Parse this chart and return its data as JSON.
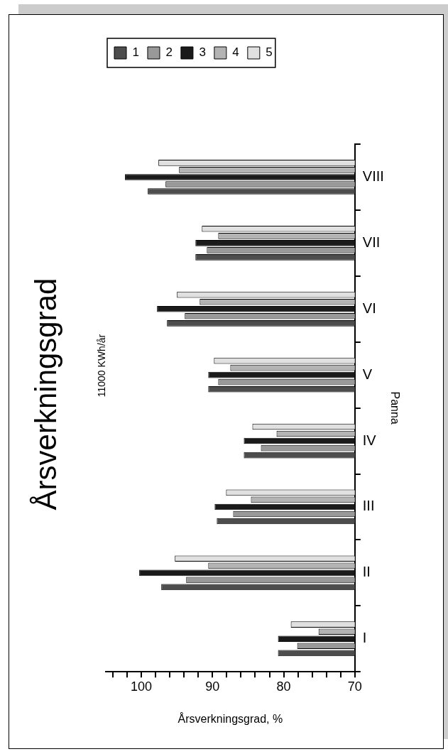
{
  "chart_data": {
    "type": "bar",
    "orientation": "horizontal",
    "title": "Årsverkningsgrad",
    "subtitle": "11000 KWh/år",
    "xlabel": "Årsverkningsgrad, %",
    "ylabel": "Panna",
    "categories": [
      "VIII",
      "VII",
      "VI",
      "V",
      "IV",
      "III",
      "II",
      "I"
    ],
    "series": [
      {
        "name": "1",
        "color": "#4d4d4d",
        "values": [
          99.1,
          92.4,
          96.4,
          90.6,
          85.6,
          89.4,
          97.2,
          80.8
        ]
      },
      {
        "name": "2",
        "color": "#999999",
        "values": [
          96.6,
          90.8,
          93.9,
          89.2,
          83.2,
          87.1,
          93.7,
          78.1
        ]
      },
      {
        "name": "3",
        "color": "#1a1a1a",
        "values": [
          102.3,
          92.4,
          97.8,
          90.6,
          85.6,
          89.7,
          100.3,
          80.8
        ]
      },
      {
        "name": "4",
        "color": "#b3b3b3",
        "values": [
          94.7,
          89.2,
          91.8,
          87.5,
          81.0,
          84.6,
          90.6,
          75.1
        ]
      },
      {
        "name": "5",
        "color": "#e0e0e0",
        "values": [
          97.6,
          91.5,
          95.0,
          89.8,
          84.4,
          88.1,
          95.3,
          79.0
        ]
      }
    ],
    "xlim": [
      105,
      70
    ],
    "xticks": [
      70,
      {
        "value": 72,
        "label": null
      },
      {
        "value": 74,
        "label": null
      },
      {
        "value": 76,
        "label": null
      },
      {
        "value": 78,
        "label": null
      },
      80,
      {
        "value": 82,
        "label": null
      },
      {
        "value": 84,
        "label": null
      },
      {
        "value": 86,
        "label": null
      },
      {
        "value": 88,
        "label": null
      },
      90,
      {
        "value": 92,
        "label": null
      },
      {
        "value": 94,
        "label": null
      },
      {
        "value": 96,
        "label": null
      },
      {
        "value": 98,
        "label": null
      },
      100,
      {
        "value": 102,
        "label": null
      },
      {
        "value": 104,
        "label": null
      }
    ],
    "legend": "top"
  }
}
